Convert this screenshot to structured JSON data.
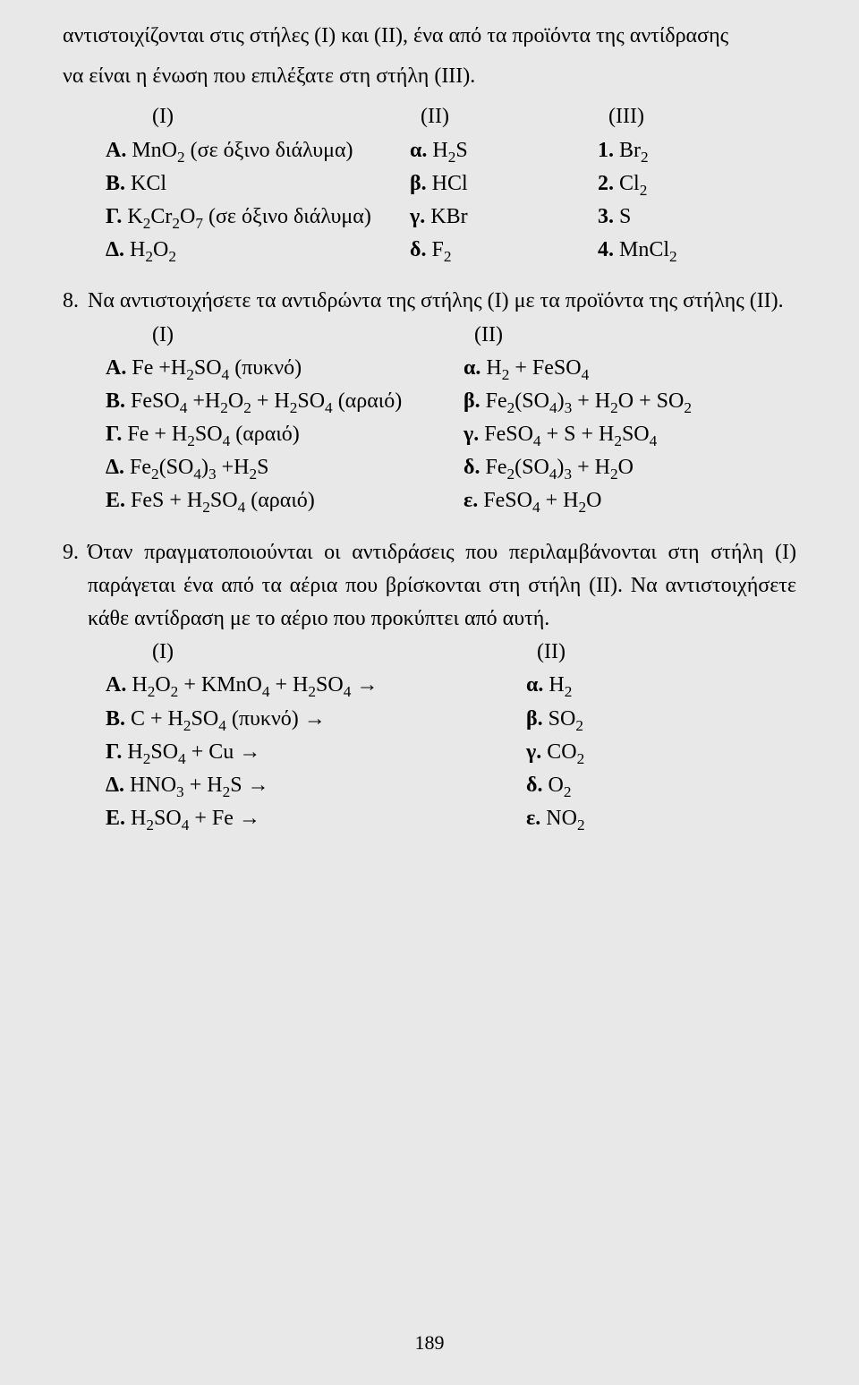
{
  "intro": {
    "line1": "αντιστοιχίζονται στις στήλες (I) και (II), ένα από τα προϊόντα της αντίδρασης",
    "line2": "να είναι η ένωση που επιλέξατε στη στήλη (III)."
  },
  "q7_headers": {
    "h1": "(I)",
    "h2": "(II)",
    "h3": "(III)"
  },
  "q7_rows": [
    {
      "a_lbl": "A.",
      "a_html": "MnO<sub>2</sub> (σε όξινο διάλυμα)",
      "b_lbl": "α.",
      "b_html": "H<sub>2</sub>S",
      "c_lbl": "1.",
      "c_html": "Br<sub>2</sub>"
    },
    {
      "a_lbl": "B.",
      "a_html": "KCl",
      "b_lbl": "β.",
      "b_html": "HCl",
      "c_lbl": "2.",
      "c_html": "Cl<sub>2</sub>"
    },
    {
      "a_lbl": "Γ.",
      "a_html": "K<sub>2</sub>Cr<sub>2</sub>O<sub>7</sub> (σε όξινο διάλυμα)",
      "b_lbl": "γ.",
      "b_html": "KBr",
      "c_lbl": "3.",
      "c_html": "S"
    },
    {
      "a_lbl": "Δ.",
      "a_html": "H<sub>2</sub>O<sub>2</sub>",
      "b_lbl": "δ.",
      "b_html": "F<sub>2</sub>",
      "c_lbl": "4.",
      "c_html": "MnCl<sub>2</sub>"
    }
  ],
  "q8": {
    "num": "8.",
    "text": "Να αντιστοιχήσετε τα αντιδρώντα της στήλης (I) με τα προϊόντα της στήλης (II)."
  },
  "q8_headers": {
    "h1": "(I)",
    "h2": "(II)"
  },
  "q8_rows": [
    {
      "a_lbl": "A.",
      "a_html": "Fe +H<sub>2</sub>SO<sub>4</sub> (πυκνό)",
      "b_lbl": "α.",
      "b_html": "H<sub>2</sub> + FeSO<sub>4</sub>"
    },
    {
      "a_lbl": "B.",
      "a_html": "FeSO<sub>4</sub> +H<sub>2</sub>O<sub>2</sub> + H<sub>2</sub>SO<sub>4</sub> (αραιό)",
      "b_lbl": "β.",
      "b_html": "Fe<sub>2</sub>(SO<sub>4</sub>)<sub>3</sub> + H<sub>2</sub>O + SO<sub>2</sub>"
    },
    {
      "a_lbl": "Γ.",
      "a_html": "Fe + H<sub>2</sub>SO<sub>4</sub> (αραιό)",
      "b_lbl": "γ.",
      "b_html": "FeSO<sub>4</sub> + S + H<sub>2</sub>SO<sub>4</sub>"
    },
    {
      "a_lbl": "Δ.",
      "a_html": "Fe<sub>2</sub>(SO<sub>4</sub>)<sub>3</sub> +H<sub>2</sub>S",
      "b_lbl": "δ.",
      "b_html": "Fe<sub>2</sub>(SO<sub>4</sub>)<sub>3</sub> + H<sub>2</sub>O"
    },
    {
      "a_lbl": "E.",
      "a_html": "FeS + H<sub>2</sub>SO<sub>4</sub> (αραιό)",
      "b_lbl": "ε.",
      "b_html": "FeSO<sub>4</sub> + H<sub>2</sub>O"
    }
  ],
  "q9": {
    "num": "9.",
    "text": "Όταν πραγματοποιούνται οι αντιδράσεις που περιλαμβάνονται στη στήλη (I) παράγεται ένα από τα αέρια που βρίσκονται στη στήλη (II). Να αντιστοιχήσετε κάθε αντίδραση με το αέριο που προκύπτει από αυτή."
  },
  "q9_headers": {
    "h1": "(I)",
    "h2": "(II)"
  },
  "q9_rows": [
    {
      "a_lbl": "A.",
      "a_html": "H<sub>2</sub>O<sub>2</sub>  +  KMnO<sub>4</sub>  +  H<sub>2</sub>SO<sub>4</sub>  →",
      "b_lbl": "α.",
      "b_html": "H<sub>2</sub>"
    },
    {
      "a_lbl": "B.",
      "a_html": "C  +  H<sub>2</sub>SO<sub>4</sub> (πυκνό)  →",
      "b_lbl": "β.",
      "b_html": "SO<sub>2</sub>"
    },
    {
      "a_lbl": "Γ.",
      "a_html": "H<sub>2</sub>SO<sub>4</sub>  +  Cu  →",
      "b_lbl": "γ.",
      "b_html": "CO<sub>2</sub>"
    },
    {
      "a_lbl": "Δ.",
      "a_html": "HNO<sub>3</sub>  +  H<sub>2</sub>S  →",
      "b_lbl": "δ.",
      "b_html": "O<sub>2</sub>"
    },
    {
      "a_lbl": "E.",
      "a_html": "H<sub>2</sub>SO<sub>4</sub>  +  Fe  →",
      "b_lbl": "ε.",
      "b_html": "NO<sub>2</sub>"
    }
  ],
  "page_number": "189"
}
